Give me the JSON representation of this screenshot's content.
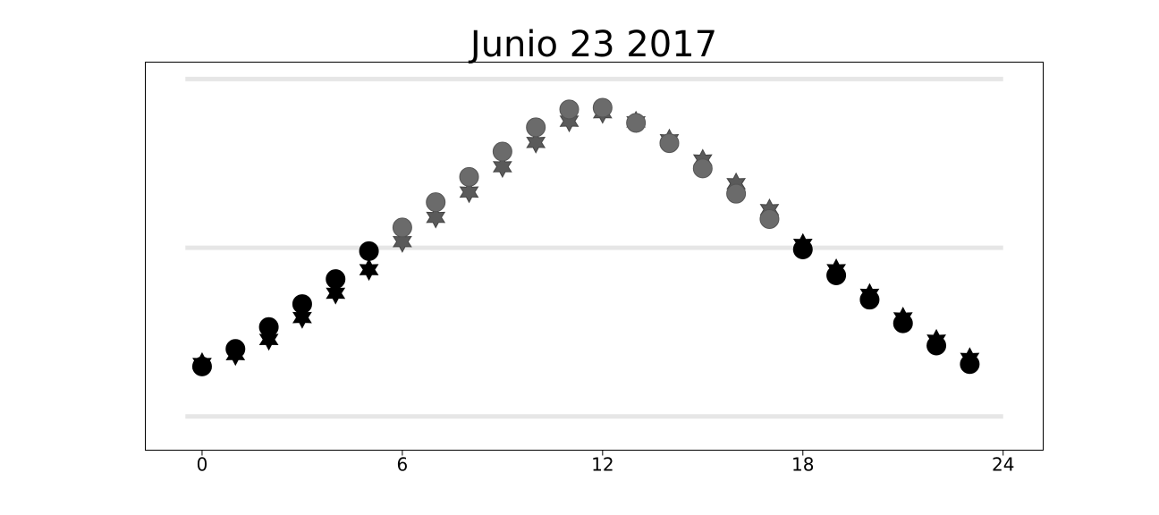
{
  "chart_data": {
    "type": "scatter",
    "title": "Junio 23 2017",
    "xlabel": "",
    "ylabel": "",
    "xlim": [
      -1.7,
      25.2
    ],
    "ylim": [
      -0.1,
      1.05
    ],
    "xticks": [
      0,
      6,
      12,
      18,
      24
    ],
    "ytick_labels_shown": false,
    "grid": "horizontal reference lines",
    "reference_lines_y": [
      0,
      0.5,
      1.0
    ],
    "x": [
      0,
      1,
      2,
      3,
      4,
      5,
      6,
      7,
      8,
      9,
      10,
      11,
      12,
      13,
      14,
      15,
      16,
      17,
      18,
      19,
      20,
      21,
      22,
      23
    ],
    "series": [
      {
        "marker": "circle",
        "values": [
          0.148,
          0.2,
          0.265,
          0.333,
          0.407,
          0.49,
          0.56,
          0.635,
          0.71,
          0.785,
          0.857,
          0.91,
          0.915,
          0.87,
          0.81,
          0.735,
          0.66,
          0.585,
          0.495,
          0.418,
          0.346,
          0.276,
          0.21,
          0.155
        ]
      },
      {
        "marker": "star",
        "values": [
          0.157,
          0.183,
          0.228,
          0.293,
          0.365,
          0.435,
          0.518,
          0.59,
          0.665,
          0.74,
          0.812,
          0.875,
          0.9,
          0.873,
          0.82,
          0.76,
          0.69,
          0.613,
          0.51,
          0.435,
          0.362,
          0.292,
          0.226,
          0.172
        ]
      }
    ],
    "colors": {
      "night": "#000000",
      "day": "#6b6b6b",
      "reference_line": "#e6e6e6",
      "frame": "#000000"
    },
    "daylight_hours": [
      6,
      17
    ]
  }
}
